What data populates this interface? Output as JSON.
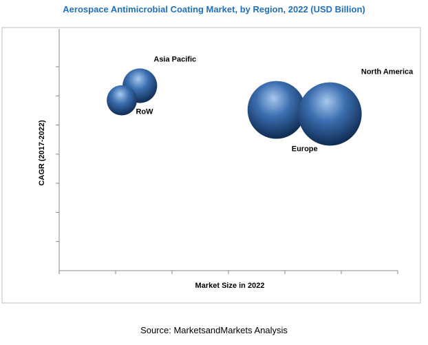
{
  "chart_data": {
    "type": "bubble",
    "title": "Aerospace Antimicrobial Coating Market, by Region, 2022 (USD Billion)",
    "x_label": "Market Size in 2022",
    "y_label": "CAGR (2017-2022)",
    "labels": [
      "Asia Pacific",
      "RoW",
      "Europe",
      "North America"
    ],
    "x": [
      1.43,
      1.11,
      3.85,
      4.8
    ],
    "y": [
      6.35,
      5.85,
      5.52,
      5.38
    ],
    "sizes": [
      6.3,
      4.8,
      17.6,
      21.2
    ],
    "color": "#3c6fb0",
    "xlim": [
      0,
      6
    ],
    "xticks": [
      0,
      1,
      2,
      3,
      4,
      5,
      6
    ],
    "ylim": [
      0,
      8.3
    ],
    "yticks": [
      1,
      2,
      3,
      4,
      5,
      6,
      7
    ]
  },
  "source": "Source: MarketsandMarkets Analysis"
}
